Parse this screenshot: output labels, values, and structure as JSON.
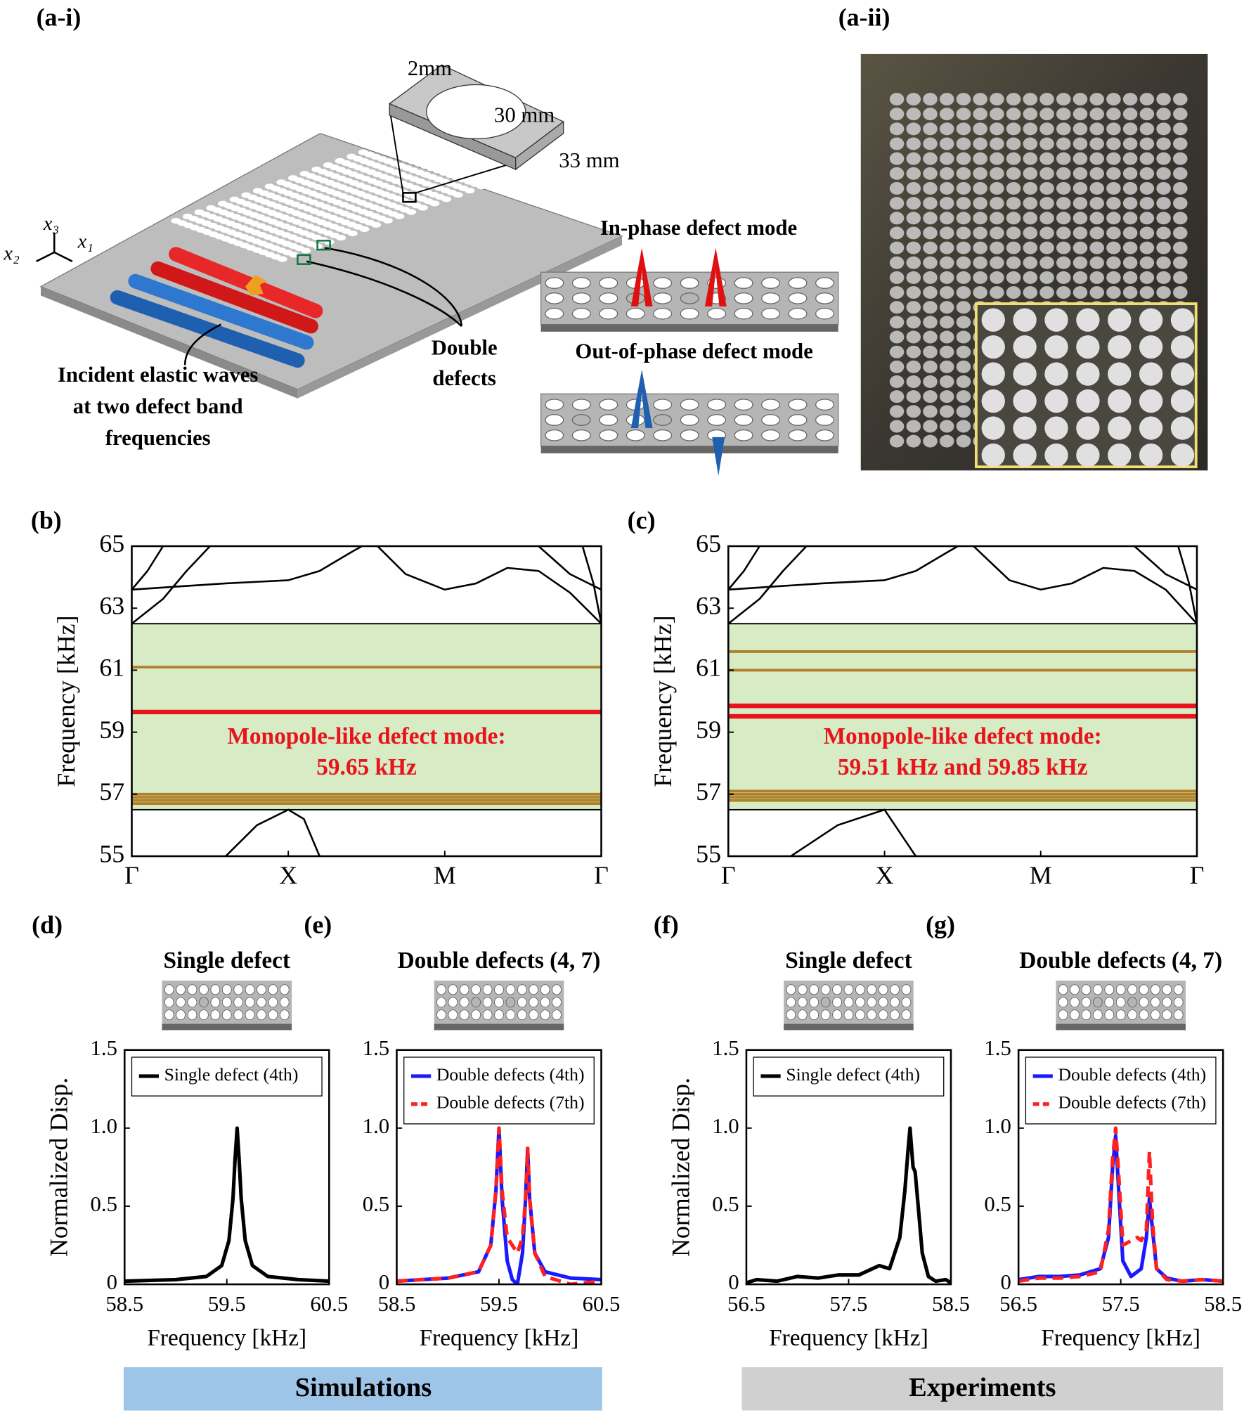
{
  "diagram": {
    "label": "(a-i)",
    "dims": [
      "2mm",
      "30 mm",
      "33 mm"
    ],
    "modes": [
      "In-phase defect mode",
      "Out-of-phase defect mode"
    ],
    "defects": [
      "Double",
      "defects"
    ],
    "incident": [
      "Incident elastic waves",
      "at two defect band",
      "frequencies"
    ],
    "axes": [
      "x₁",
      "x₂",
      "x₃"
    ]
  },
  "photo": {
    "label": "(a-ii)"
  },
  "footer": {
    "simulations": "Simulations",
    "experiments": "Experiments"
  },
  "chart_data": [
    {
      "type": "line",
      "label": "(b)",
      "ylabel": "Frequency [kHz]",
      "xlim": [
        0,
        3
      ],
      "ylim": [
        55,
        65
      ],
      "xticks": [
        {
          "value": 0,
          "label": "Γ"
        },
        {
          "value": 1,
          "label": "X"
        },
        {
          "value": 2,
          "label": "M"
        },
        {
          "value": 3,
          "label": "Γ"
        }
      ],
      "yticks": [
        55,
        57,
        59,
        61,
        63,
        65
      ],
      "bandgap": {
        "range": [
          56.5,
          62.5
        ],
        "color": "#d7ebc5"
      },
      "defect_bands": {
        "color": "#b0802a",
        "values": [
          61.1,
          57.0,
          56.9,
          56.8,
          56.7
        ]
      },
      "monopole_modes": {
        "color": "#e8141b",
        "values": [
          59.65
        ]
      },
      "annotation": [
        "Monopole-like defect mode:",
        "59.65 kHz"
      ],
      "series": [
        {
          "color": "#000000",
          "x": [
            0,
            0.1,
            0.2
          ],
          "values": [
            63.6,
            64.2,
            65
          ]
        },
        {
          "color": "#000000",
          "x": [
            0,
            0.2,
            0.35,
            0.5
          ],
          "values": [
            62.5,
            63.3,
            64.2,
            65
          ]
        },
        {
          "color": "#000000",
          "x": [
            0,
            0.3,
            0.6,
            1,
            1.2,
            1.4,
            1.47
          ],
          "values": [
            63.6,
            63.7,
            63.8,
            63.9,
            64.2,
            64.8,
            65
          ]
        },
        {
          "color": "#000000",
          "x": [
            1.57,
            1.75,
            2,
            2.2,
            2.4,
            2.6,
            2.8,
            3
          ],
          "values": [
            65,
            64.1,
            63.6,
            63.8,
            64.3,
            64.2,
            63.5,
            62.5
          ]
        },
        {
          "color": "#000000",
          "x": [
            2.88,
            2.95,
            3
          ],
          "values": [
            65,
            63.8,
            62.5
          ]
        },
        {
          "color": "#000000",
          "x": [
            2.6,
            2.8,
            3
          ],
          "values": [
            65,
            64.1,
            63.6
          ]
        },
        {
          "color": "#000000",
          "x": [
            0.6,
            0.8,
            1,
            1.1,
            1.2
          ],
          "values": [
            55,
            56,
            56.5,
            56.2,
            55
          ]
        }
      ]
    },
    {
      "type": "line",
      "label": "(c)",
      "ylabel": "Frequency [kHz]",
      "xlim": [
        0,
        3
      ],
      "ylim": [
        55,
        65
      ],
      "xticks": [
        {
          "value": 0,
          "label": "Γ"
        },
        {
          "value": 1,
          "label": "X"
        },
        {
          "value": 2,
          "label": "M"
        },
        {
          "value": 3,
          "label": "Γ"
        }
      ],
      "yticks": [
        55,
        57,
        59,
        61,
        63,
        65
      ],
      "bandgap": {
        "range": [
          56.5,
          62.5
        ],
        "color": "#d7ebc5"
      },
      "defect_bands": {
        "color": "#b0802a",
        "values": [
          61.6,
          61.0,
          57.1,
          57.0,
          56.9,
          56.8
        ]
      },
      "monopole_modes": {
        "color": "#e8141b",
        "values": [
          59.85,
          59.51
        ]
      },
      "annotation": [
        "Monopole-like defect mode:",
        "59.51 kHz and 59.85 kHz"
      ],
      "series": [
        {
          "color": "#000000",
          "x": [
            0,
            0.1,
            0.2
          ],
          "values": [
            63.6,
            64.2,
            65
          ]
        },
        {
          "color": "#000000",
          "x": [
            0,
            0.2,
            0.35,
            0.5
          ],
          "values": [
            62.5,
            63.3,
            64.2,
            65
          ]
        },
        {
          "color": "#000000",
          "x": [
            0,
            0.3,
            0.6,
            1,
            1.2,
            1.4,
            1.47
          ],
          "values": [
            63.6,
            63.7,
            63.8,
            63.9,
            64.2,
            64.8,
            65
          ]
        },
        {
          "color": "#000000",
          "x": [
            1.57,
            1.8,
            2,
            2.2,
            2.4,
            2.6,
            2.8,
            3
          ],
          "values": [
            65,
            63.9,
            63.6,
            63.8,
            64.3,
            64.2,
            63.6,
            62.5
          ]
        },
        {
          "color": "#000000",
          "x": [
            2.88,
            2.95,
            3
          ],
          "values": [
            65,
            63.8,
            62.5
          ]
        },
        {
          "color": "#000000",
          "x": [
            2.6,
            2.8,
            3
          ],
          "values": [
            65,
            64.1,
            63.6
          ]
        },
        {
          "color": "#000000",
          "x": [
            0.4,
            0.7,
            1,
            1.2
          ],
          "values": [
            55,
            56,
            56.5,
            55
          ]
        }
      ]
    },
    {
      "type": "line",
      "label": "(d)",
      "subtitle": "Single defect",
      "xlabel": "Frequency [kHz]",
      "ylabel": "Normalized Disp.",
      "xlim": [
        58.5,
        60.5
      ],
      "ylim": [
        0,
        1.5
      ],
      "xticks": [
        58.5,
        59.5,
        60.5
      ],
      "yticks": [
        0,
        0.5,
        {
          "value": 1,
          "label": "1.0"
        },
        1.5
      ],
      "legend": "upper left",
      "series": [
        {
          "name": "Single defect (4th)",
          "color": "#000000",
          "x": [
            58.5,
            59,
            59.3,
            59.45,
            59.52,
            59.56,
            59.58,
            59.6,
            59.62,
            59.64,
            59.68,
            59.75,
            59.9,
            60.2,
            60.5
          ],
          "values": [
            0.02,
            0.03,
            0.05,
            0.12,
            0.28,
            0.55,
            0.8,
            1.0,
            0.8,
            0.55,
            0.28,
            0.12,
            0.05,
            0.03,
            0.02
          ]
        }
      ]
    },
    {
      "type": "line",
      "label": "(e)",
      "subtitle": "Double defects (4, 7)",
      "xlabel": "Frequency [kHz]",
      "xlim": [
        58.5,
        60.5
      ],
      "ylim": [
        0,
        1.5
      ],
      "xticks": [
        58.5,
        59.5,
        60.5
      ],
      "yticks": [
        0,
        0.5,
        {
          "value": 1,
          "label": "1.0"
        },
        1.5
      ],
      "legend": "upper left",
      "series": [
        {
          "name": "Double defects (4th)",
          "color": "#1a1aff",
          "x": [
            58.5,
            59,
            59.3,
            59.42,
            59.47,
            59.5,
            59.53,
            59.58,
            59.63,
            59.68,
            59.73,
            59.76,
            59.78,
            59.8,
            59.85,
            59.95,
            60.2,
            60.5
          ],
          "values": [
            0.02,
            0.04,
            0.08,
            0.25,
            0.6,
            1.0,
            0.55,
            0.15,
            0.03,
            0,
            0.2,
            0.55,
            0.87,
            0.55,
            0.2,
            0.08,
            0.04,
            0.03
          ]
        },
        {
          "name": "Double defects (7th)",
          "color": "#ff2020",
          "dash": true,
          "x": [
            58.5,
            59,
            59.3,
            59.42,
            59.47,
            59.5,
            59.53,
            59.58,
            59.63,
            59.68,
            59.73,
            59.76,
            59.78,
            59.8,
            59.85,
            59.95,
            60.2,
            60.5
          ],
          "values": [
            0.02,
            0.04,
            0.08,
            0.25,
            0.6,
            1.0,
            0.6,
            0.3,
            0.25,
            0.2,
            0.3,
            0.55,
            0.87,
            0.55,
            0.2,
            0.05,
            0,
            0.02
          ]
        }
      ]
    },
    {
      "type": "line",
      "label": "(f)",
      "subtitle": "Single defect",
      "xlabel": "Frequency [kHz]",
      "ylabel": "Normalized Disp.",
      "xlim": [
        56.5,
        58.5
      ],
      "ylim": [
        0,
        1.5
      ],
      "xticks": [
        56.5,
        57.5,
        58.5
      ],
      "yticks": [
        0,
        0.5,
        {
          "value": 1,
          "label": "1.0"
        },
        1.5
      ],
      "legend": "upper left",
      "series": [
        {
          "name": "Single defect (4th)",
          "color": "#000000",
          "x": [
            56.5,
            56.6,
            56.8,
            57,
            57.2,
            57.4,
            57.6,
            57.8,
            57.9,
            58.0,
            58.05,
            58.08,
            58.1,
            58.13,
            58.15,
            58.18,
            58.22,
            58.28,
            58.35,
            58.45,
            58.5
          ],
          "values": [
            0.01,
            0.03,
            0.02,
            0.05,
            0.04,
            0.06,
            0.06,
            0.12,
            0.1,
            0.3,
            0.6,
            0.85,
            1.0,
            0.75,
            0.72,
            0.5,
            0.2,
            0.05,
            0.02,
            0.03,
            0.01
          ]
        }
      ]
    },
    {
      "type": "line",
      "label": "(g)",
      "subtitle": "Double defects (4, 7)",
      "xlabel": "Frequency [kHz]",
      "xlim": [
        56.5,
        58.5
      ],
      "ylim": [
        0,
        1.5
      ],
      "xticks": [
        56.5,
        57.5,
        58.5
      ],
      "yticks": [
        0,
        0.5,
        {
          "value": 1,
          "label": "1.0"
        },
        1.5
      ],
      "legend": "upper left",
      "series": [
        {
          "name": "Double defects (4th)",
          "color": "#1a1aff",
          "x": [
            56.5,
            56.7,
            56.9,
            57.1,
            57.3,
            57.38,
            57.42,
            57.45,
            57.48,
            57.52,
            57.6,
            57.7,
            57.75,
            57.78,
            57.81,
            57.85,
            57.95,
            58.1,
            58.3,
            58.5
          ],
          "values": [
            0.03,
            0.05,
            0.05,
            0.06,
            0.1,
            0.3,
            0.75,
            0.95,
            0.6,
            0.15,
            0.05,
            0.1,
            0.3,
            0.55,
            0.35,
            0.1,
            0.04,
            0.02,
            0.03,
            0.02
          ]
        },
        {
          "name": "Double defects (7th)",
          "color": "#ff2020",
          "dash": true,
          "x": [
            56.5,
            56.7,
            56.9,
            57.1,
            57.3,
            57.38,
            57.42,
            57.45,
            57.48,
            57.52,
            57.6,
            57.66,
            57.7,
            57.75,
            57.78,
            57.81,
            57.85,
            57.95,
            58.1,
            58.3,
            58.5
          ],
          "values": [
            0.02,
            0.04,
            0.04,
            0.05,
            0.08,
            0.35,
            0.8,
            1.0,
            0.7,
            0.25,
            0.28,
            0.3,
            0.28,
            0.35,
            0.85,
            0.4,
            0.1,
            0.03,
            0.02,
            0.03,
            0.02
          ]
        }
      ]
    }
  ]
}
